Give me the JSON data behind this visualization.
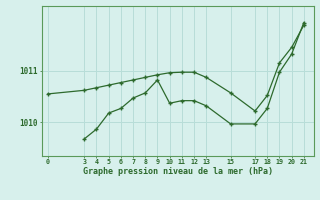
{
  "bg_color": "#d7f0ec",
  "grid_color": "#b8ddd8",
  "line_color": "#2d6a2d",
  "line1_x": [
    0,
    3,
    4,
    5,
    6,
    7,
    8,
    9,
    10,
    11,
    12,
    13,
    15,
    17,
    18,
    19,
    20,
    21
  ],
  "line1_y": [
    1010.55,
    1010.62,
    1010.67,
    1010.72,
    1010.77,
    1010.82,
    1010.87,
    1010.92,
    1010.96,
    1010.97,
    1010.97,
    1010.87,
    1010.57,
    1010.22,
    1010.52,
    1011.15,
    1011.45,
    1011.88
  ],
  "line2_x": [
    3,
    4,
    5,
    6,
    7,
    8,
    9,
    10,
    11,
    12,
    13,
    15,
    17,
    18,
    19,
    20,
    21
  ],
  "line2_y": [
    1009.68,
    1009.87,
    1010.18,
    1010.27,
    1010.47,
    1010.57,
    1010.82,
    1010.37,
    1010.42,
    1010.42,
    1010.32,
    1009.97,
    1009.97,
    1010.27,
    1010.97,
    1011.32,
    1011.93
  ],
  "xticks": [
    0,
    3,
    4,
    5,
    6,
    7,
    8,
    9,
    10,
    11,
    12,
    13,
    15,
    17,
    18,
    19,
    20,
    21
  ],
  "ytick_labels": [
    "1010",
    "1011"
  ],
  "ytick_values": [
    1010,
    1011
  ],
  "ylim": [
    1009.35,
    1012.25
  ],
  "xlim": [
    -0.5,
    21.8
  ],
  "xlabel": "Graphe pression niveau de la mer (hPa)"
}
